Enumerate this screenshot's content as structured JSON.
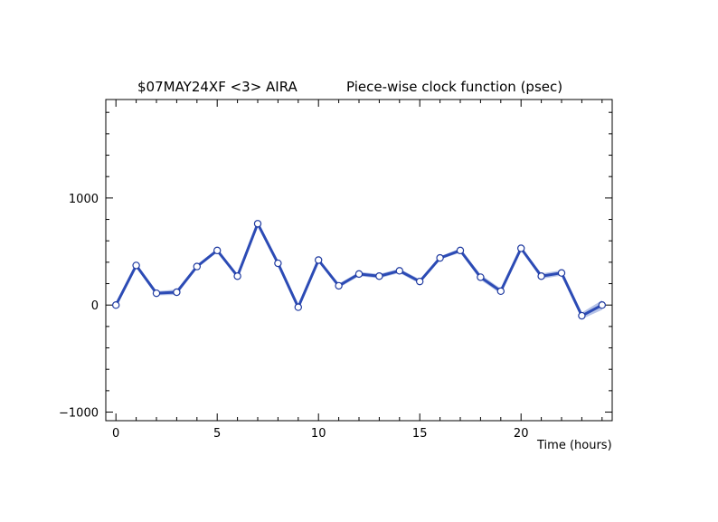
{
  "chart_data": {
    "type": "line",
    "title_left": "$07MAY24XF <3>  AIRA",
    "title_right": "Piece-wise clock function (psec)",
    "xlabel": "Time (hours)",
    "ylabel": "",
    "xlim": [
      -0.5,
      24.5
    ],
    "ylim": [
      -1080,
      1920
    ],
    "x_major_ticks": [
      0,
      5,
      10,
      15,
      20
    ],
    "x_tick_labels": [
      "0",
      "5",
      "10",
      "15",
      "20"
    ],
    "y_major_ticks": [
      -1000,
      0,
      1000
    ],
    "y_tick_labels": [
      "−1000",
      "0",
      "1000"
    ],
    "colors": {
      "line": "#2c4bb5",
      "band": "#a9b8e3",
      "marker_fill": "#ffffff",
      "marker_stroke": "#1f3aa0",
      "axis": "#000000"
    },
    "series": [
      {
        "x": [
          0,
          1,
          2,
          3,
          4,
          5,
          6,
          7,
          8,
          9,
          10,
          11,
          12,
          13,
          14,
          15,
          16,
          17,
          18,
          19,
          20,
          21,
          22,
          23,
          24
        ],
        "values": [
          0,
          370,
          110,
          120,
          360,
          510,
          270,
          760,
          390,
          -20,
          420,
          180,
          290,
          270,
          320,
          220,
          440,
          510,
          260,
          130,
          530,
          270,
          300,
          -100,
          0
        ],
        "uncertainty": [
          15,
          15,
          20,
          25,
          15,
          15,
          15,
          15,
          15,
          15,
          15,
          20,
          20,
          20,
          20,
          20,
          15,
          20,
          25,
          25,
          15,
          25,
          25,
          30,
          45
        ]
      }
    ]
  }
}
